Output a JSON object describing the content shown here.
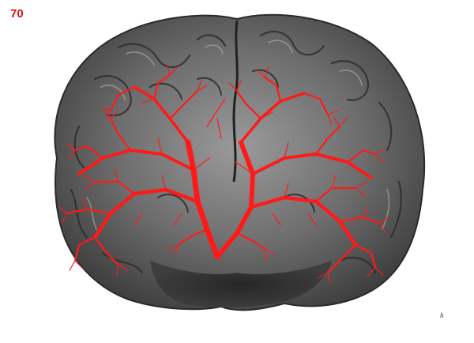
{
  "page_number": "70",
  "corner_mark": "h",
  "figure": {
    "subject": "brain-photograph",
    "overlay": "branching-red-tree",
    "colors": {
      "overlay": "#ff1a1a",
      "brain_dark": "#3a3a3a",
      "brain_light": "#c8c8c8",
      "background": "#ffffff",
      "page_number": "#e01010"
    }
  }
}
